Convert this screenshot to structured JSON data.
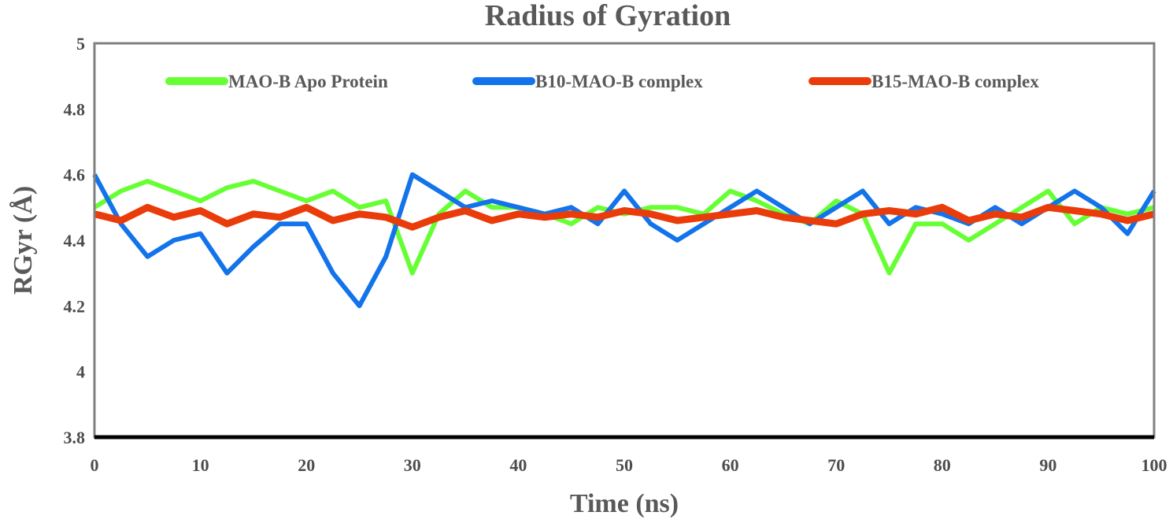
{
  "chart_data": {
    "type": "line",
    "title": "Radius of Gyration",
    "xlabel": "Time (ns)",
    "ylabel": "RGyr (Å)",
    "xlim": [
      0,
      100
    ],
    "ylim": [
      3.8,
      5
    ],
    "xticks": [
      0,
      10,
      20,
      30,
      40,
      50,
      60,
      70,
      80,
      90,
      100
    ],
    "yticks": [
      3.8,
      4,
      4.2,
      4.4,
      4.6,
      4.8,
      5
    ],
    "xtick_labels": [
      "0",
      "10",
      "20",
      "30",
      "40",
      "50",
      "60",
      "70",
      "80",
      "90",
      "100"
    ],
    "ytick_labels": [
      "3.8",
      "4",
      "4.2",
      "4.4",
      "4.6",
      "4.8",
      "5"
    ],
    "legend_position": "top",
    "grid": false,
    "x": [
      0,
      2.5,
      5,
      7.5,
      10,
      12.5,
      15,
      17.5,
      20,
      22.5,
      25,
      27.5,
      30,
      32.5,
      35,
      37.5,
      40,
      42.5,
      45,
      47.5,
      50,
      52.5,
      55,
      57.5,
      60,
      62.5,
      65,
      67.5,
      70,
      72.5,
      75,
      77.5,
      80,
      82.5,
      85,
      87.5,
      90,
      92.5,
      95,
      97.5,
      100
    ],
    "series": [
      {
        "name": "MAO-B Apo Protein",
        "color": "#66ff33",
        "values": [
          4.5,
          4.55,
          4.58,
          4.55,
          4.52,
          4.56,
          4.58,
          4.55,
          4.52,
          4.55,
          4.5,
          4.52,
          4.3,
          4.48,
          4.55,
          4.5,
          4.5,
          4.48,
          4.45,
          4.5,
          4.48,
          4.5,
          4.5,
          4.48,
          4.55,
          4.52,
          4.48,
          4.45,
          4.52,
          4.48,
          4.3,
          4.45,
          4.45,
          4.4,
          4.45,
          4.5,
          4.55,
          4.45,
          4.5,
          4.48,
          4.5
        ]
      },
      {
        "name": "B10-MAO-B complex",
        "color": "#1273eb",
        "values": [
          4.6,
          4.45,
          4.35,
          4.4,
          4.42,
          4.3,
          4.38,
          4.45,
          4.45,
          4.3,
          4.2,
          4.35,
          4.6,
          4.55,
          4.5,
          4.52,
          4.5,
          4.48,
          4.5,
          4.45,
          4.55,
          4.45,
          4.4,
          4.45,
          4.5,
          4.55,
          4.5,
          4.45,
          4.5,
          4.55,
          4.45,
          4.5,
          4.48,
          4.45,
          4.5,
          4.45,
          4.5,
          4.55,
          4.5,
          4.42,
          4.55
        ]
      },
      {
        "name": "B15-MAO-B complex",
        "color": "#ea3c0a",
        "values": [
          4.48,
          4.46,
          4.5,
          4.47,
          4.49,
          4.45,
          4.48,
          4.47,
          4.5,
          4.46,
          4.48,
          4.47,
          4.44,
          4.47,
          4.49,
          4.46,
          4.48,
          4.47,
          4.48,
          4.47,
          4.49,
          4.48,
          4.46,
          4.47,
          4.48,
          4.49,
          4.47,
          4.46,
          4.45,
          4.48,
          4.49,
          4.48,
          4.5,
          4.46,
          4.48,
          4.47,
          4.5,
          4.49,
          4.48,
          4.46,
          4.48
        ]
      }
    ]
  }
}
